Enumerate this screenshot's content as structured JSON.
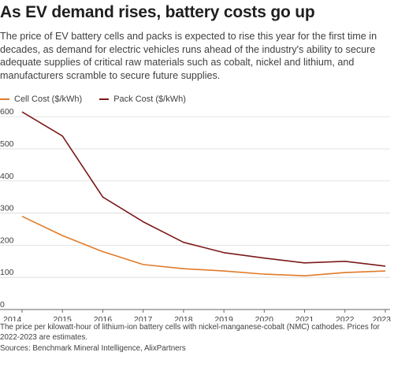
{
  "header": {
    "title": "As EV demand rises, battery costs go up",
    "subtitle": "The price of EV battery cells and packs is expected to rise this year for the first time in decades, as demand for electric vehicles runs ahead of the industry's ability to secure adequate supplies of critical raw materials such as cobalt, nickel and lithium, and manufacturers scramble to secure future supplies."
  },
  "footer": {
    "note": "The price per kilowatt-hour of lithium-ion battery cells with nickel-manganese-cobalt (NMC) cathodes. Prices for 2022-2023 are estimates.",
    "source": "Sources: Benchmark Mineral Intelligence, AlixPartners"
  },
  "chart_data": {
    "type": "line",
    "title": "As EV demand rises, battery costs go up",
    "xlabel": "",
    "ylabel": "",
    "x": [
      2014,
      2015,
      2016,
      2017,
      2018,
      2019,
      2020,
      2021,
      2022,
      2023
    ],
    "xlim": [
      2014,
      2023
    ],
    "ylim": [
      0,
      620
    ],
    "yticks": [
      0,
      100,
      200,
      300,
      400,
      500,
      600
    ],
    "grid": "horizontal",
    "legend": "top-left",
    "series": [
      {
        "name": "Cell Cost ($/kWh)",
        "color": "#e07b28",
        "values": [
          290,
          230,
          180,
          140,
          127,
          120,
          110,
          105,
          115,
          120
        ]
      },
      {
        "name": "Pack Cost ($/kWh)",
        "color": "#7d1a1a",
        "values": [
          615,
          540,
          350,
          273,
          209,
          177,
          160,
          145,
          150,
          135
        ]
      }
    ]
  }
}
